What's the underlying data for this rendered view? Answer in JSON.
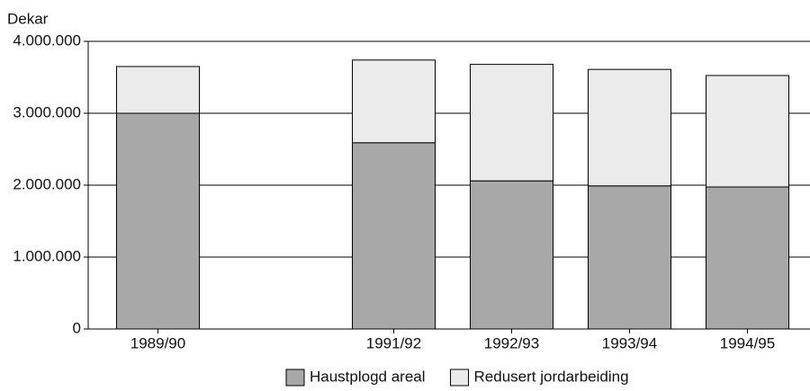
{
  "chart_data": {
    "type": "stacked_bar",
    "y_label": "Dekar",
    "categories": [
      "1989/90",
      null,
      "1991/92",
      "1992/93",
      "1993/94",
      "1994/95"
    ],
    "series": [
      {
        "name": "Haustplogd areal",
        "color": "#a8a8a8",
        "values": [
          3000000,
          null,
          2590000,
          2060000,
          1990000,
          1975000
        ]
      },
      {
        "name": "Redusert jordarbeiding",
        "color": "#ebebeb",
        "values": [
          650000,
          null,
          1150000,
          1620000,
          1620000,
          1550000
        ]
      }
    ],
    "ylim": [
      0,
      4000000
    ],
    "yticks": [
      0,
      {
        "value": 1000000,
        "label": "1.000.000"
      },
      {
        "value": 2000000,
        "label": "2.000.000"
      },
      {
        "value": 3000000,
        "label": "3.000.000"
      },
      {
        "value": 4000000,
        "label": "4.000.000"
      }
    ],
    "grid": true,
    "legend": "bottom"
  }
}
